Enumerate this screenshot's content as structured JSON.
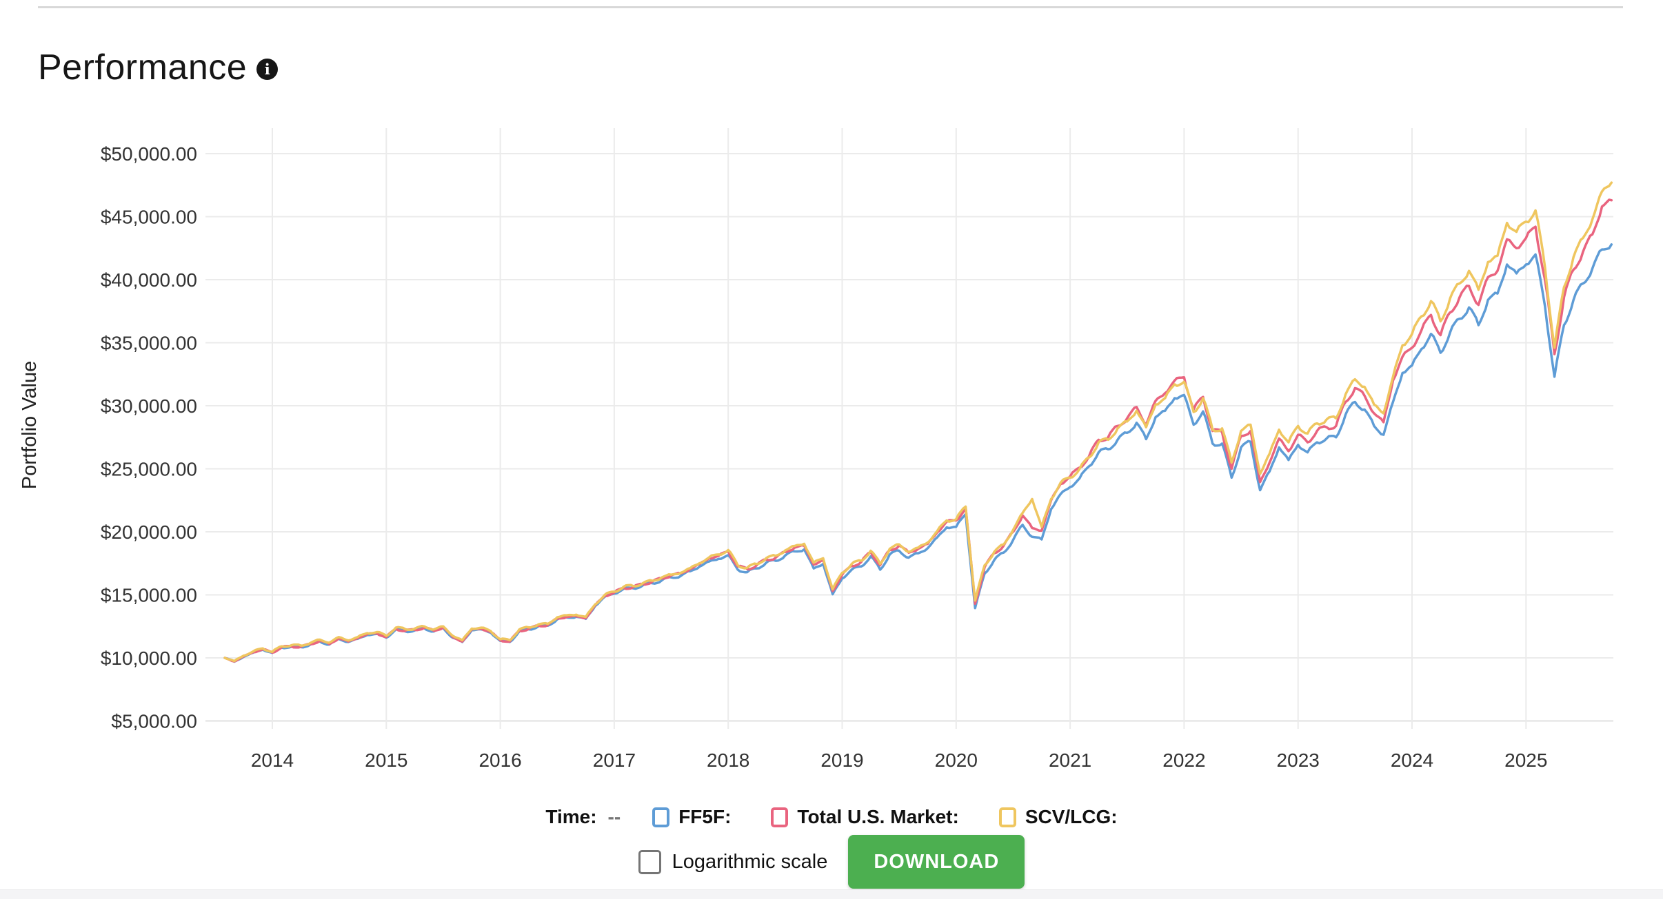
{
  "page": {
    "title": "Performance",
    "info_icon_glyph": "i"
  },
  "legend": {
    "time_label": "Time:",
    "time_value": "--"
  },
  "controls": {
    "log_scale_label": "Logarithmic scale",
    "log_scale_checked": false,
    "download_label": "DOWNLOAD",
    "download_color": "#4CAF50"
  },
  "chart_data": {
    "type": "line",
    "title": "Performance",
    "xlabel": "",
    "ylabel": "Portfolio Value",
    "y_tick_prefix": "$",
    "ylim": [
      5000,
      50000
    ],
    "y_tick_interval": 5000,
    "x_tick_years": [
      2014,
      2015,
      2016,
      2017,
      2018,
      2019,
      2020,
      2021,
      2022,
      2023,
      2024,
      2025
    ],
    "x_start_year_fraction": 2013.5833,
    "x_points_per_year": 12,
    "grid": true,
    "legend_position": "bottom",
    "values_unit": "USD thousands",
    "series": [
      {
        "name": "FF5F",
        "legend_label": "FF5F:",
        "color": "#5E9CD6",
        "values_usd_k": [
          10.0,
          9.7,
          10.1,
          10.42,
          10.65,
          10.4,
          10.82,
          10.88,
          10.85,
          11.05,
          11.3,
          11.06,
          11.5,
          11.26,
          11.52,
          11.82,
          11.9,
          11.6,
          12.25,
          12.1,
          12.18,
          12.35,
          12.1,
          12.36,
          11.6,
          11.26,
          12.2,
          12.26,
          12.0,
          11.35,
          11.26,
          12.1,
          12.26,
          12.5,
          12.56,
          13.06,
          13.2,
          13.26,
          13.1,
          14.12,
          14.85,
          15.1,
          15.48,
          15.52,
          15.75,
          15.92,
          16.15,
          16.38,
          16.5,
          16.88,
          17.25,
          17.65,
          17.85,
          18.15,
          17.0,
          16.8,
          17.1,
          17.55,
          17.7,
          18.12,
          18.45,
          18.6,
          17.1,
          17.45,
          15.05,
          16.3,
          17.0,
          17.25,
          18.05,
          17.0,
          18.2,
          18.5,
          17.95,
          18.3,
          18.7,
          19.55,
          20.35,
          20.4,
          21.4,
          13.95,
          16.7,
          17.75,
          18.35,
          19.35,
          20.55,
          19.6,
          19.4,
          21.8,
          23.0,
          23.55,
          24.25,
          25.2,
          26.3,
          26.55,
          27.3,
          27.85,
          28.65,
          27.35,
          29.1,
          29.6,
          30.6,
          30.85,
          28.5,
          29.55,
          27.0,
          27.0,
          24.3,
          26.7,
          27.15,
          23.3,
          24.8,
          26.7,
          25.7,
          26.9,
          26.3,
          27.1,
          27.4,
          27.5,
          29.3,
          30.3,
          29.7,
          28.4,
          27.7,
          30.3,
          32.6,
          33.2,
          34.5,
          35.7,
          34.2,
          35.8,
          36.9,
          37.8,
          36.4,
          38.4,
          38.9,
          41.2,
          40.5,
          41.2,
          42.0,
          37.9,
          32.3,
          36.4,
          38.4,
          39.7,
          40.9,
          42.4,
          42.8
        ]
      },
      {
        "name": "Total U.S. Market",
        "legend_label": "Total U.S. Market:",
        "color": "#E9647F",
        "values_usd_k": [
          10.0,
          9.72,
          10.12,
          10.45,
          10.68,
          10.42,
          10.85,
          10.9,
          10.88,
          11.08,
          11.35,
          11.1,
          11.55,
          11.3,
          11.58,
          11.88,
          11.95,
          11.65,
          12.3,
          12.15,
          12.22,
          12.4,
          12.15,
          12.42,
          11.65,
          11.3,
          12.25,
          12.32,
          12.05,
          11.4,
          11.3,
          12.15,
          12.3,
          12.55,
          12.6,
          13.12,
          13.25,
          13.3,
          13.15,
          14.18,
          14.92,
          15.18,
          15.55,
          15.6,
          15.85,
          16.05,
          16.3,
          16.55,
          16.7,
          17.05,
          17.45,
          17.9,
          18.1,
          18.45,
          17.25,
          17.05,
          17.35,
          17.8,
          17.95,
          18.4,
          18.75,
          18.9,
          17.4,
          17.75,
          15.3,
          16.6,
          17.3,
          17.6,
          18.4,
          17.35,
          18.55,
          18.9,
          18.35,
          18.65,
          19.05,
          19.95,
          20.8,
          20.9,
          21.9,
          14.3,
          17.2,
          18.3,
          18.9,
          20.0,
          21.3,
          20.3,
          20.1,
          22.5,
          23.8,
          24.4,
          25.1,
          26.0,
          27.3,
          27.5,
          28.4,
          29.0,
          29.9,
          28.5,
          30.4,
          31.0,
          32.0,
          32.25,
          29.7,
          30.7,
          28.0,
          27.9,
          25.0,
          27.6,
          28.0,
          23.95,
          25.5,
          27.4,
          26.4,
          27.7,
          27.1,
          28.0,
          28.3,
          28.4,
          30.3,
          31.4,
          30.8,
          29.4,
          28.7,
          32.0,
          33.9,
          34.6,
          36.0,
          37.2,
          35.6,
          37.4,
          38.6,
          39.5,
          38.0,
          40.2,
          40.7,
          43.2,
          42.5,
          43.3,
          44.2,
          40.0,
          34.1,
          38.6,
          40.8,
          42.2,
          43.6,
          45.8,
          46.3
        ]
      },
      {
        "name": "SCV/LCG",
        "legend_label": "SCV/LCG:",
        "color": "#EFC65F",
        "values_usd_k": [
          10.0,
          9.75,
          10.18,
          10.52,
          10.75,
          10.48,
          10.92,
          11.0,
          10.98,
          11.18,
          11.45,
          11.2,
          11.65,
          11.38,
          11.66,
          11.96,
          12.05,
          11.75,
          12.4,
          12.28,
          12.32,
          12.5,
          12.25,
          12.5,
          11.75,
          11.4,
          12.32,
          12.4,
          12.12,
          11.48,
          11.4,
          12.25,
          12.42,
          12.65,
          12.7,
          13.22,
          13.38,
          13.42,
          13.25,
          14.25,
          15.0,
          15.25,
          15.65,
          15.7,
          15.92,
          16.12,
          16.38,
          16.6,
          16.75,
          17.12,
          17.52,
          17.98,
          18.2,
          18.55,
          17.35,
          17.15,
          17.45,
          17.92,
          18.1,
          18.52,
          18.88,
          19.05,
          17.55,
          17.9,
          15.45,
          16.75,
          17.45,
          17.7,
          18.5,
          17.45,
          18.65,
          19.0,
          18.4,
          18.75,
          19.15,
          20.05,
          20.9,
          21.0,
          22.0,
          14.55,
          17.35,
          18.4,
          19.0,
          20.15,
          21.5,
          22.6,
          20.4,
          22.6,
          23.9,
          24.3,
          25.0,
          25.9,
          27.1,
          27.3,
          28.2,
          28.75,
          29.6,
          28.3,
          30.1,
          30.6,
          31.7,
          31.9,
          29.5,
          30.6,
          28.1,
          28.2,
          25.5,
          28.0,
          28.5,
          24.6,
          26.2,
          28.1,
          27.1,
          28.4,
          27.8,
          28.6,
          28.9,
          29.0,
          30.9,
          32.1,
          31.5,
          30.1,
          29.4,
          32.3,
          34.8,
          35.7,
          37.1,
          38.3,
          36.7,
          38.5,
          39.7,
          40.7,
          39.2,
          41.4,
          41.9,
          44.5,
          43.8,
          44.6,
          45.5,
          41.0,
          34.6,
          39.4,
          41.8,
          43.3,
          44.8,
          47.0,
          47.7
        ]
      }
    ]
  }
}
